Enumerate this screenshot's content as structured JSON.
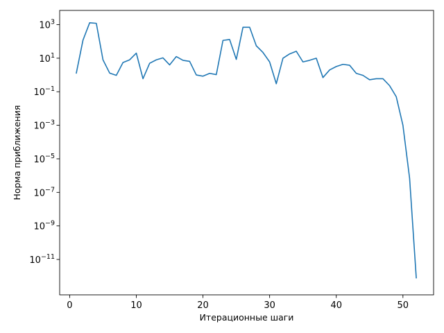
{
  "chart_data": {
    "type": "line",
    "title": "",
    "xlabel": "Итерационные шаги",
    "ylabel": "Норма приближения",
    "xlim": [
      -1.5,
      54.6
    ],
    "ylim_log10": [
      -13.11,
      3.85
    ],
    "yscale": "log",
    "grid": false,
    "line_color": "#1f77b4",
    "x_ticks": [
      {
        "value": 0,
        "label": "0"
      },
      {
        "value": 10,
        "label": "10"
      },
      {
        "value": 20,
        "label": "20"
      },
      {
        "value": 30,
        "label": "30"
      },
      {
        "value": 40,
        "label": "40"
      },
      {
        "value": 50,
        "label": "50"
      }
    ],
    "y_ticks": [
      {
        "value": 3,
        "base": "10",
        "exp": "3"
      },
      {
        "value": 1,
        "base": "10",
        "exp": "1"
      },
      {
        "value": -1,
        "base": "10",
        "exp": "−1"
      },
      {
        "value": -3,
        "base": "10",
        "exp": "−3"
      },
      {
        "value": -5,
        "base": "10",
        "exp": "−5"
      },
      {
        "value": -7,
        "base": "10",
        "exp": "−7"
      },
      {
        "value": -9,
        "base": "10",
        "exp": "−9"
      },
      {
        "value": -11,
        "base": "10",
        "exp": "−11"
      }
    ],
    "series": [
      {
        "x": [
          1,
          2,
          3,
          4,
          5,
          6,
          7,
          8,
          9,
          10,
          11,
          12,
          13,
          14,
          15,
          16,
          17,
          18,
          19,
          20,
          21,
          22,
          23,
          24,
          25,
          26,
          27,
          28,
          29,
          30,
          31,
          32,
          33,
          34,
          35,
          36,
          37,
          38,
          39,
          40,
          41,
          42,
          43,
          44,
          45,
          46,
          47,
          48,
          49,
          50,
          51,
          52
        ],
        "y": [
          1.3,
          120,
          1300,
          1200,
          8,
          1.3,
          0.95,
          5.5,
          8,
          20,
          0.6,
          5,
          8,
          10.5,
          4,
          12.5,
          7.5,
          6.5,
          1,
          0.85,
          1.25,
          1.05,
          115,
          130,
          8.5,
          700,
          700,
          55,
          22,
          6,
          0.3,
          10,
          18,
          26,
          6,
          7.5,
          10,
          0.7,
          2,
          3.2,
          4.3,
          3.8,
          1.25,
          0.95,
          0.52,
          0.6,
          0.6,
          0.23,
          0.05,
          0.001,
          7e-07,
          8e-13
        ]
      }
    ]
  }
}
